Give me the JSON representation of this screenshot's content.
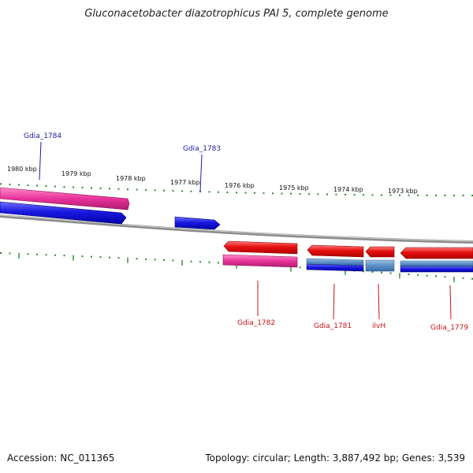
{
  "title": "Gluconacetobacter diazotrophicus PAI 5, complete genome",
  "footer": {
    "accession": "Accession: NC_011365",
    "summary": "Topology: circular; Length: 3,887,492 bp; Genes: 3,539"
  },
  "colors": {
    "tick": "#2a8a2a",
    "backbone": "#8c8c8c",
    "top_label": "#1a1aa6",
    "bottom_label": "#cc1111",
    "cds_red": "#e61010",
    "gene_pink": "#e8329a",
    "gene_blue": "#1a1ae0",
    "gene_steel": "#5b8fc6"
  },
  "ruler_labels": [
    "1980 kbp",
    "1979 kbp",
    "1978 kbp",
    "1977 kbp",
    "1976 kbp",
    "1975 kbp",
    "1974 kbp",
    "1973 kbp"
  ],
  "genes": {
    "top_strand": [
      "Gdia_1784",
      "Gdia_1783"
    ],
    "bottom_strand": [
      "Gdia_1782",
      "Gdia_1781",
      "ilvH",
      "Gdia_1779"
    ]
  }
}
